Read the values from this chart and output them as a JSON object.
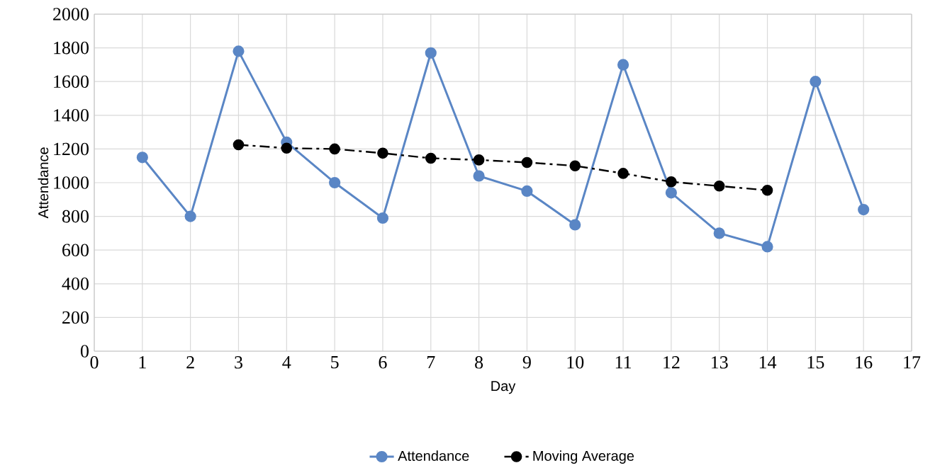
{
  "chart_data": {
    "type": "line",
    "xlabel": "Day",
    "ylabel": "Attendance",
    "series": [
      {
        "name": "Attendance",
        "color": "#5a86c5",
        "line_style": "solid",
        "x": [
          1,
          2,
          3,
          4,
          5,
          6,
          7,
          8,
          9,
          10,
          11,
          12,
          13,
          14,
          15,
          16
        ],
        "values": [
          1150,
          800,
          1780,
          1240,
          1000,
          790,
          1770,
          1040,
          950,
          750,
          1700,
          940,
          700,
          620,
          1600,
          840
        ]
      },
      {
        "name": "Moving Average",
        "color": "#000000",
        "line_style": "dashed",
        "x": [
          3,
          4,
          5,
          6,
          7,
          8,
          9,
          10,
          11,
          12,
          13,
          14
        ],
        "values": [
          1225,
          1205,
          1200,
          1175,
          1145,
          1135,
          1120,
          1100,
          1055,
          1005,
          980,
          955
        ]
      }
    ],
    "xlim": [
      0,
      17
    ],
    "ylim": [
      0,
      2000
    ],
    "xticks": [
      0,
      1,
      2,
      3,
      4,
      5,
      6,
      7,
      8,
      9,
      10,
      11,
      12,
      13,
      14,
      15,
      16,
      17
    ],
    "yticks": [
      0,
      200,
      400,
      600,
      800,
      1000,
      1200,
      1400,
      1600,
      1800,
      2000
    ],
    "grid": true,
    "legend": "bottom",
    "marker": "circle"
  }
}
